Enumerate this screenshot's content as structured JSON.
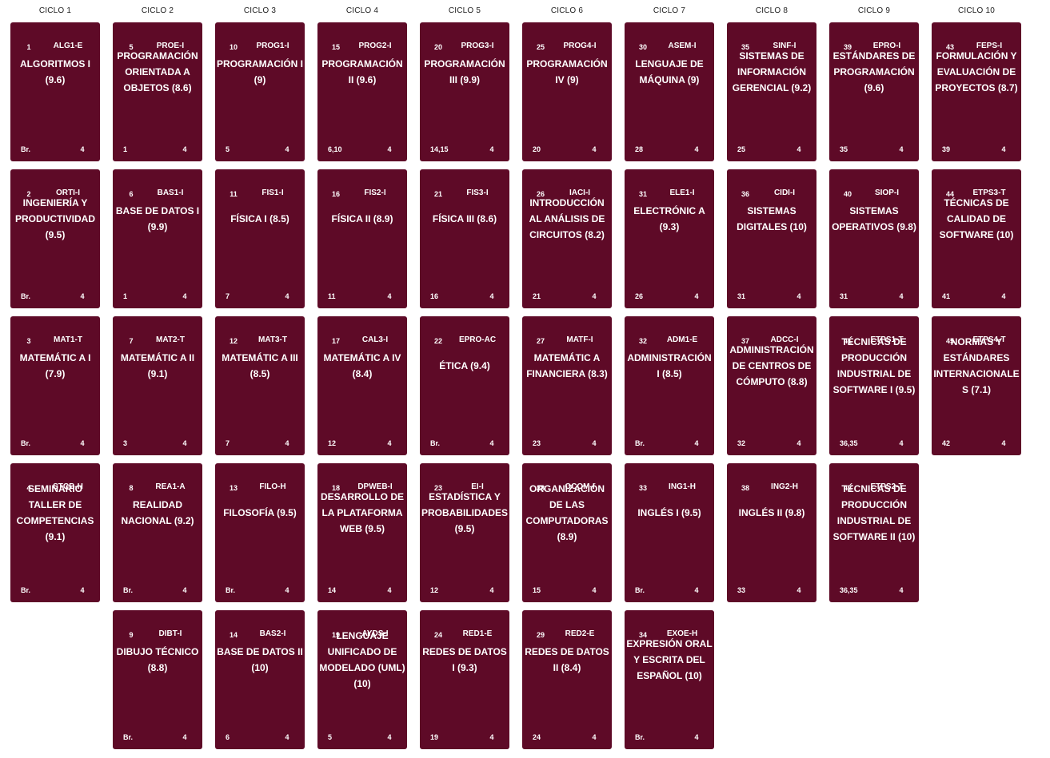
{
  "cycles": [
    "CICLO 1",
    "CICLO 2",
    "CICLO 3",
    "CICLO 4",
    "CICLO 5",
    "CICLO 6",
    "CICLO 7",
    "CICLO 8",
    "CICLO 9",
    "CICLO 10"
  ],
  "colors": {
    "card_bg": "#5e0a27",
    "card_text": "#ffffff",
    "header_text": "#222222"
  },
  "courses": [
    {
      "cycle": 1,
      "row": 1,
      "num": "1",
      "code": "ALG1-E",
      "name": "ALGORITMOS I (9.6)",
      "req": "Br.",
      "cred": "4"
    },
    {
      "cycle": 1,
      "row": 2,
      "num": "2",
      "code": "ORTI-I",
      "name": "INGENIERÍA Y PRODUCTIVIDAD (9.5)",
      "req": "Br.",
      "cred": "4"
    },
    {
      "cycle": 1,
      "row": 3,
      "num": "3",
      "code": "MAT1-T",
      "name": "MATEMÁTIC A I (7.9)",
      "req": "Br.",
      "cred": "4"
    },
    {
      "cycle": 1,
      "row": 4,
      "num": "4",
      "code": "STCB-H",
      "name": "SEMINARIO TALLER DE COMPETENCIAS (9.1)",
      "req": "Br.",
      "cred": "4"
    },
    {
      "cycle": 2,
      "row": 1,
      "num": "5",
      "code": "PROE-I",
      "name": "PROGRAMACIÓN ORIENTADA A OBJETOS (8.6)",
      "req": "1",
      "cred": "4"
    },
    {
      "cycle": 2,
      "row": 2,
      "num": "6",
      "code": "BAS1-I",
      "name": "BASE DE DATOS I (9.9)",
      "req": "1",
      "cred": "4"
    },
    {
      "cycle": 2,
      "row": 3,
      "num": "7",
      "code": "MAT2-T",
      "name": "MATEMÁTIC A II (9.1)",
      "req": "3",
      "cred": "4"
    },
    {
      "cycle": 2,
      "row": 4,
      "num": "8",
      "code": "REA1-A",
      "name": "REALIDAD NACIONAL (9.2)",
      "req": "Br.",
      "cred": "4"
    },
    {
      "cycle": 2,
      "row": 5,
      "num": "9",
      "code": "DIBT-I",
      "name": "DIBUJO TÉCNICO (8.8)",
      "req": "Br.",
      "cred": "4"
    },
    {
      "cycle": 3,
      "row": 1,
      "num": "10",
      "code": "PROG1-I",
      "name": "PROGRAMACIÓN I (9)",
      "req": "5",
      "cred": "4"
    },
    {
      "cycle": 3,
      "row": 2,
      "num": "11",
      "code": "FIS1-I",
      "name": "FÍSICA I (8.5)",
      "req": "7",
      "cred": "4"
    },
    {
      "cycle": 3,
      "row": 3,
      "num": "12",
      "code": "MAT3-T",
      "name": "MATEMÁTIC A III (8.5)",
      "req": "7",
      "cred": "4"
    },
    {
      "cycle": 3,
      "row": 4,
      "num": "13",
      "code": "FILO-H",
      "name": "FILOSOFÍA (9.5)",
      "req": "Br.",
      "cred": "4"
    },
    {
      "cycle": 3,
      "row": 5,
      "num": "14",
      "code": "BAS2-I",
      "name": "BASE DE DATOS II (10)",
      "req": "6",
      "cred": "4"
    },
    {
      "cycle": 4,
      "row": 1,
      "num": "15",
      "code": "PROG2-I",
      "name": "PROGRAMACIÓN II (9.6)",
      "req": "6,10",
      "cred": "4"
    },
    {
      "cycle": 4,
      "row": 2,
      "num": "16",
      "code": "FIS2-I",
      "name": "FÍSICA II (8.9)",
      "req": "11",
      "cred": "4"
    },
    {
      "cycle": 4,
      "row": 3,
      "num": "17",
      "code": "CAL3-I",
      "name": "MATEMÁTIC A IV (8.4)",
      "req": "12",
      "cred": "4"
    },
    {
      "cycle": 4,
      "row": 4,
      "num": "18",
      "code": "DPWEB-I",
      "name": "DESARROLLO DE LA PLATAFORMA WEB (9.5)",
      "req": "14",
      "cred": "4"
    },
    {
      "cycle": 4,
      "row": 5,
      "num": "19",
      "code": "AYDS-I",
      "name": "LENGUAJE UNIFICADO DE MODELADO (UML) (10)",
      "req": "5",
      "cred": "4"
    },
    {
      "cycle": 5,
      "row": 1,
      "num": "20",
      "code": "PROG3-I",
      "name": "PROGRAMACIÓN III (9.9)",
      "req": "14,15",
      "cred": "4"
    },
    {
      "cycle": 5,
      "row": 2,
      "num": "21",
      "code": "FIS3-I",
      "name": "FÍSICA III (8.6)",
      "req": "16",
      "cred": "4"
    },
    {
      "cycle": 5,
      "row": 3,
      "num": "22",
      "code": "EPRO-AC",
      "name": "ÉTICA (9.4)",
      "req": "Br.",
      "cred": "4"
    },
    {
      "cycle": 5,
      "row": 4,
      "num": "23",
      "code": "EI-I",
      "name": "ESTADÍSTICA Y PROBABILIDADES (9.5)",
      "req": "12",
      "cred": "4"
    },
    {
      "cycle": 5,
      "row": 5,
      "num": "24",
      "code": "RED1-E",
      "name": "REDES DE DATOS I (9.3)",
      "req": "19",
      "cred": "4"
    },
    {
      "cycle": 6,
      "row": 1,
      "num": "25",
      "code": "PROG4-I",
      "name": "PROGRAMACIÓN IV (9)",
      "req": "20",
      "cred": "4"
    },
    {
      "cycle": 6,
      "row": 2,
      "num": "26",
      "code": "IACI-I",
      "name": "INTRODUCCIÓN AL ANÁLISIS DE CIRCUITOS (8.2)",
      "req": "21",
      "cred": "4"
    },
    {
      "cycle": 6,
      "row": 3,
      "num": "27",
      "code": "MATF-I",
      "name": "MATEMÁTIC A FINANCIERA (8.3)",
      "req": "23",
      "cred": "4"
    },
    {
      "cycle": 6,
      "row": 4,
      "num": "28",
      "code": "OCOM-I",
      "name": "ORGANIZACIÓN DE LAS COMPUTADORAS (8.9)",
      "req": "15",
      "cred": "4"
    },
    {
      "cycle": 6,
      "row": 5,
      "num": "29",
      "code": "RED2-E",
      "name": "REDES DE DATOS II (8.4)",
      "req": "24",
      "cred": "4"
    },
    {
      "cycle": 7,
      "row": 1,
      "num": "30",
      "code": "ASEM-I",
      "name": "LENGUAJE DE MÁQUINA (9)",
      "req": "28",
      "cred": "4"
    },
    {
      "cycle": 7,
      "row": 2,
      "num": "31",
      "code": "ELE1-I",
      "name": "ELECTRÓNIC A (9.3)",
      "req": "26",
      "cred": "4"
    },
    {
      "cycle": 7,
      "row": 3,
      "num": "32",
      "code": "ADM1-E",
      "name": "ADMINISTRACIÓN I (8.5)",
      "req": "Br.",
      "cred": "4"
    },
    {
      "cycle": 7,
      "row": 4,
      "num": "33",
      "code": "ING1-H",
      "name": "INGLÉS I (9.5)",
      "req": "Br.",
      "cred": "4"
    },
    {
      "cycle": 7,
      "row": 5,
      "num": "34",
      "code": "EXOE-H",
      "name": "EXPRESIÓN ORAL Y ESCRITA DEL ESPAÑOL (10)",
      "req": "Br.",
      "cred": "4"
    },
    {
      "cycle": 8,
      "row": 1,
      "num": "35",
      "code": "SINF-I",
      "name": "SISTEMAS DE INFORMACIÓN GERENCIAL (9.2)",
      "req": "25",
      "cred": "4"
    },
    {
      "cycle": 8,
      "row": 2,
      "num": "36",
      "code": "CIDI-I",
      "name": "SISTEMAS DIGITALES (10)",
      "req": "31",
      "cred": "4"
    },
    {
      "cycle": 8,
      "row": 3,
      "num": "37",
      "code": "ADCC-I",
      "name": "ADMINISTRACIÓN DE CENTROS DE CÓMPUTO (8.8)",
      "req": "32",
      "cred": "4"
    },
    {
      "cycle": 8,
      "row": 4,
      "num": "38",
      "code": "ING2-H",
      "name": "INGLÉS II (9.8)",
      "req": "33",
      "cred": "4"
    },
    {
      "cycle": 9,
      "row": 1,
      "num": "39",
      "code": "EPRO-I",
      "name": "ESTÁNDARES DE PROGRAMACIÓN (9.6)",
      "req": "35",
      "cred": "4"
    },
    {
      "cycle": 9,
      "row": 2,
      "num": "40",
      "code": "SIOP-I",
      "name": "SISTEMAS OPERATIVOS (9.8)",
      "req": "31",
      "cred": "4"
    },
    {
      "cycle": 9,
      "row": 3,
      "num": "41",
      "code": "ETPS1-T",
      "name": "TÉCNICAS DE PRODUCCIÓN INDUSTRIAL DE SOFTWARE I (9.5)",
      "req": "36,35",
      "cred": "4"
    },
    {
      "cycle": 9,
      "row": 4,
      "num": "42",
      "code": "ETPS2-T",
      "name": "TÉCNICAS DE PRODUCCIÓN INDUSTRIAL DE SOFTWARE II (10)",
      "req": "36,35",
      "cred": "4"
    },
    {
      "cycle": 10,
      "row": 1,
      "num": "43",
      "code": "FEPS-I",
      "name": "FORMULACIÓN Y EVALUACIÓN DE PROYECTOS (8.7)",
      "req": "39",
      "cred": "4"
    },
    {
      "cycle": 10,
      "row": 2,
      "num": "44",
      "code": "ETPS3-T",
      "name": "TÉCNICAS DE CALIDAD DE SOFTWARE (10)",
      "req": "41",
      "cred": "4"
    },
    {
      "cycle": 10,
      "row": 3,
      "num": "45",
      "code": "ETPS4-T",
      "name": "NORMAS Y ESTÁNDARES INTERNACIONALES (7.1)",
      "req": "42",
      "cred": "4"
    }
  ]
}
